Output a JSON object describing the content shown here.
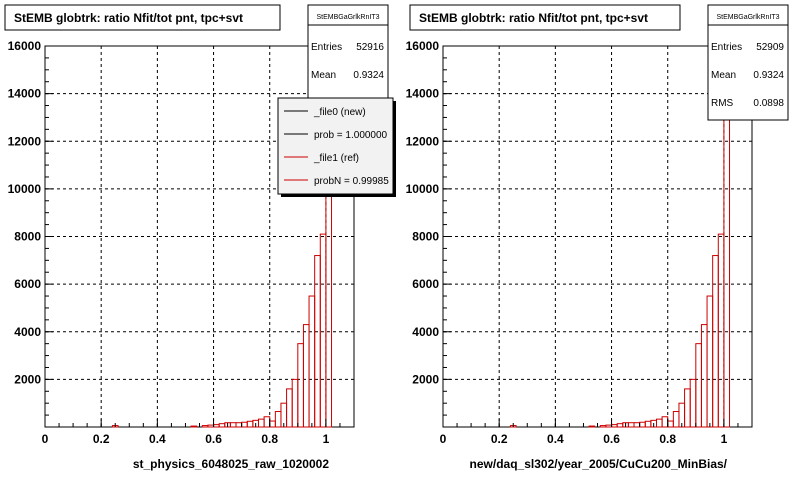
{
  "chart_data": [
    {
      "type": "bar",
      "title": "StEMB globtrk: ratio Nfit/tot pnt, tpc+svt",
      "xlabel": "st_physics_6048025_raw_1020002",
      "xlim": [
        0,
        1.1
      ],
      "ylim": [
        0,
        16000
      ],
      "x_ticks": [
        "0",
        "0.2",
        "0.4",
        "0.6",
        "0.8",
        "1"
      ],
      "y_ticks": [
        "2000",
        "4000",
        "6000",
        "8000",
        "10000",
        "12000",
        "14000",
        "16000"
      ],
      "grid": true,
      "stats": {
        "header": "StEMBGaGrlkRnIT3",
        "rows": [
          {
            "label": "Entries",
            "value": "52916"
          },
          {
            "label": "Mean",
            "value": "0.9324"
          }
        ]
      },
      "legend": [
        {
          "label": "_file0 (new)",
          "color": "#000000"
        },
        {
          "label": "prob = 1.000000",
          "color": "#000000"
        },
        {
          "label": "_file1 (ref)",
          "color": "#cc0000"
        },
        {
          "label": "probN = 0.99985",
          "color": "#cc0000"
        }
      ],
      "series": [
        {
          "color": "#cc0000",
          "bin_width": 0.02,
          "x": [
            0.24,
            0.52,
            0.56,
            0.58,
            0.6,
            0.62,
            0.64,
            0.66,
            0.68,
            0.7,
            0.72,
            0.74,
            0.76,
            0.78,
            0.8,
            0.82,
            0.84,
            0.86,
            0.88,
            0.9,
            0.92,
            0.94,
            0.96,
            0.98,
            1.0
          ],
          "values": [
            60,
            40,
            60,
            80,
            100,
            140,
            180,
            180,
            180,
            200,
            240,
            280,
            330,
            430,
            250,
            650,
            1000,
            1600,
            2000,
            3500,
            4300,
            5500,
            7200,
            8100,
            15500
          ]
        }
      ]
    },
    {
      "type": "bar",
      "title": "StEMB globtrk: ratio Nfit/tot pnt, tpc+svt",
      "xlabel": "new/daq_sl302/year_2005/CuCu200_MinBias/",
      "xlim": [
        0,
        1.1
      ],
      "ylim": [
        0,
        16000
      ],
      "x_ticks": [
        "0",
        "0.2",
        "0.4",
        "0.6",
        "0.8",
        "1"
      ],
      "y_ticks": [
        "2000",
        "4000",
        "6000",
        "8000",
        "10000",
        "12000",
        "14000",
        "16000"
      ],
      "grid": true,
      "stats": {
        "header": "StEMBGaGrlkRnIT3",
        "rows": [
          {
            "label": "Entries",
            "value": "52909"
          },
          {
            "label": "Mean",
            "value": "0.9324"
          },
          {
            "label": "RMS",
            "value": "0.0898"
          }
        ]
      },
      "series": [
        {
          "color": "#cc0000",
          "bin_width": 0.02,
          "x": [
            0.24,
            0.52,
            0.56,
            0.58,
            0.6,
            0.62,
            0.64,
            0.66,
            0.68,
            0.7,
            0.72,
            0.74,
            0.76,
            0.78,
            0.8,
            0.82,
            0.84,
            0.86,
            0.88,
            0.9,
            0.92,
            0.94,
            0.96,
            0.98,
            1.0
          ],
          "values": [
            60,
            40,
            60,
            80,
            100,
            140,
            180,
            180,
            180,
            200,
            240,
            280,
            330,
            430,
            250,
            650,
            1000,
            1600,
            2000,
            3500,
            4300,
            5500,
            7200,
            8100,
            15500
          ]
        }
      ]
    }
  ]
}
